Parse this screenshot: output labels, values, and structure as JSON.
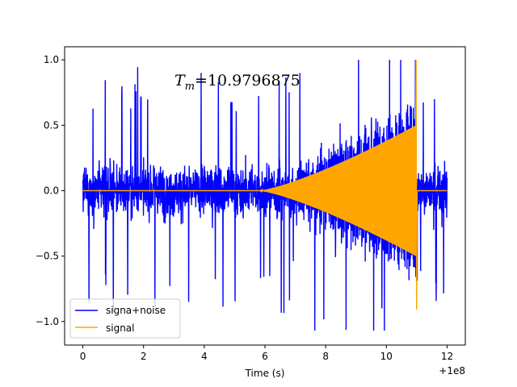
{
  "chart_data": {
    "type": "line",
    "title": "",
    "xlabel": "Time (s)",
    "ylabel": "",
    "x_offset_label": "+1e8",
    "xlim": [
      -0.6,
      12.6
    ],
    "ylim": [
      -1.18,
      1.1
    ],
    "xticks": [
      0,
      2,
      4,
      6,
      8,
      10,
      12
    ],
    "xtick_labels": [
      "0",
      "2",
      "4",
      "6",
      "8",
      "10",
      "12"
    ],
    "yticks": [
      -1.0,
      -0.5,
      0.0,
      0.5,
      1.0
    ],
    "ytick_labels": [
      "−1.0",
      "−0.5",
      "0.0",
      "0.5",
      "1.0"
    ],
    "grid": false,
    "legend_position": "lower-left",
    "annotation": {
      "prefix": "T",
      "subscript": "m",
      "value": "=10.9796875",
      "x": 3.0,
      "y": 0.82
    },
    "series": [
      {
        "name": "signa+noise",
        "color": "#0000ff",
        "description": "noise of amplitude ~0.55 (spikes to ~1.0) plus chirp signal",
        "x_range": [
          0,
          12
        ],
        "noise_amplitude": 0.55,
        "max_spike_up": 1.0,
        "min_spike_down": -1.07
      },
      {
        "name": "signal",
        "color": "#ffa500",
        "description": "chirp starting near 5.8, envelope growing to 1.0 at merger time then zero",
        "x_range": [
          0,
          12
        ],
        "chirp_start": 5.8,
        "merger_time": 10.9796875,
        "peak_max": 1.0,
        "peak_min": -0.91,
        "envelope_at_end": 0.5
      }
    ]
  }
}
